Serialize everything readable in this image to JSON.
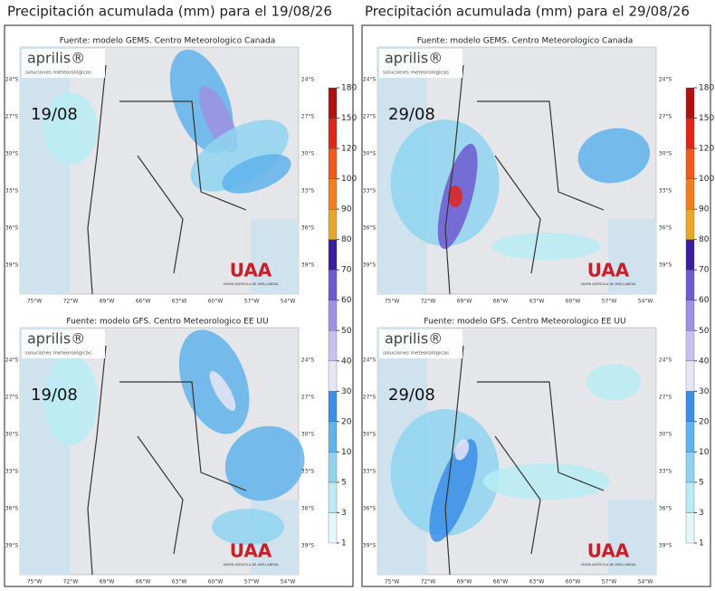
{
  "columns": [
    {
      "title": "Precipitación acumulada (mm) para el 19/08/26",
      "panels": [
        {
          "source": "Fuente: modelo GEMS. Centro Meteorologico Canada",
          "date_label": "19/08"
        },
        {
          "source": "Fuente: modelo GFS. Centro Meteorologico EE UU",
          "date_label": "19/08"
        }
      ]
    },
    {
      "title": "Precipitación acumulada (mm) para el 29/08/26",
      "panels": [
        {
          "source": "Fuente: modelo GEMS. Centro Meteorologico Canada",
          "date_label": "29/08"
        },
        {
          "source": "Fuente: modelo GFS. Centro Meteorologico EE UU",
          "date_label": "29/08"
        }
      ]
    }
  ],
  "logo": {
    "name": "aprilis®",
    "tagline": "soluciones meteorológicas"
  },
  "sponsor": {
    "name": "UAA",
    "subtitle": "UNIÓN AGRÍCOLA DE AVELLANEDA"
  },
  "lat_labels": [
    "24°S",
    "27°S",
    "30°S",
    "33°S",
    "36°S",
    "39°S"
  ],
  "lon_labels": [
    "75°W",
    "72°W",
    "69°W",
    "66°W",
    "63°W",
    "60°W",
    "57°W",
    "54°W"
  ],
  "colorbar": {
    "levels": [
      1,
      3,
      5,
      10,
      20,
      30,
      40,
      50,
      60,
      70,
      80,
      90,
      100,
      120,
      150,
      180
    ],
    "colors": [
      "#e2f8fb",
      "#b9ecf5",
      "#8fd3f0",
      "#60b3ec",
      "#3b8ee6",
      "#e9e5f7",
      "#c9c0f0",
      "#9e90e2",
      "#6f5bd0",
      "#3a1ea0",
      "#e8a62a",
      "#f07f22",
      "#f05a1c",
      "#e0261a",
      "#b01010"
    ]
  }
}
